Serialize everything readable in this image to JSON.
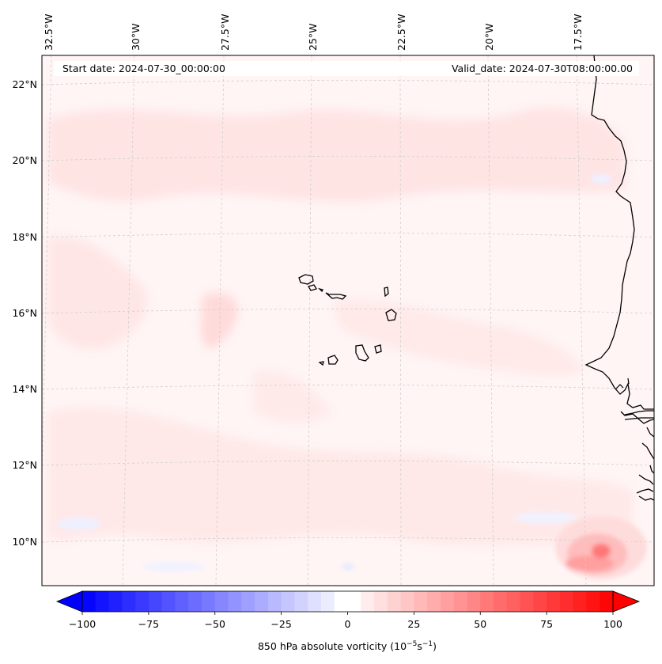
{
  "map": {
    "header_left": "Start date: 2024-07-30_00:00:00",
    "header_right": "Valid_date: 2024-07-30T08:00:00.00",
    "lon_labels": [
      "32.5°W",
      "30°W",
      "27.5°W",
      "25°W",
      "22.5°W",
      "20°W",
      "17.5°W"
    ],
    "lat_labels": [
      "22°N",
      "20°N",
      "18°N",
      "16°N",
      "14°N",
      "12°N",
      "10°N"
    ],
    "colorbar_ticks": [
      "−100",
      "−75",
      "−50",
      "−25",
      "0",
      "25",
      "50",
      "75",
      "100"
    ],
    "colorbar_label": "850 hPa absolute vorticity (10",
    "colorbar_label_exp1": "−5",
    "colorbar_label_mid": "s",
    "colorbar_label_exp2": "−1",
    "colorbar_label_end": ")"
  },
  "colors": {
    "negative_max": "#0000ff",
    "positive_max": "#ff0000",
    "neutral": "#ffffff",
    "background_field": "#fff4f4",
    "coast": "#000000",
    "grid": "#c8c8c8"
  },
  "colorbar": {
    "min": -100,
    "max": 100,
    "step": 5
  }
}
